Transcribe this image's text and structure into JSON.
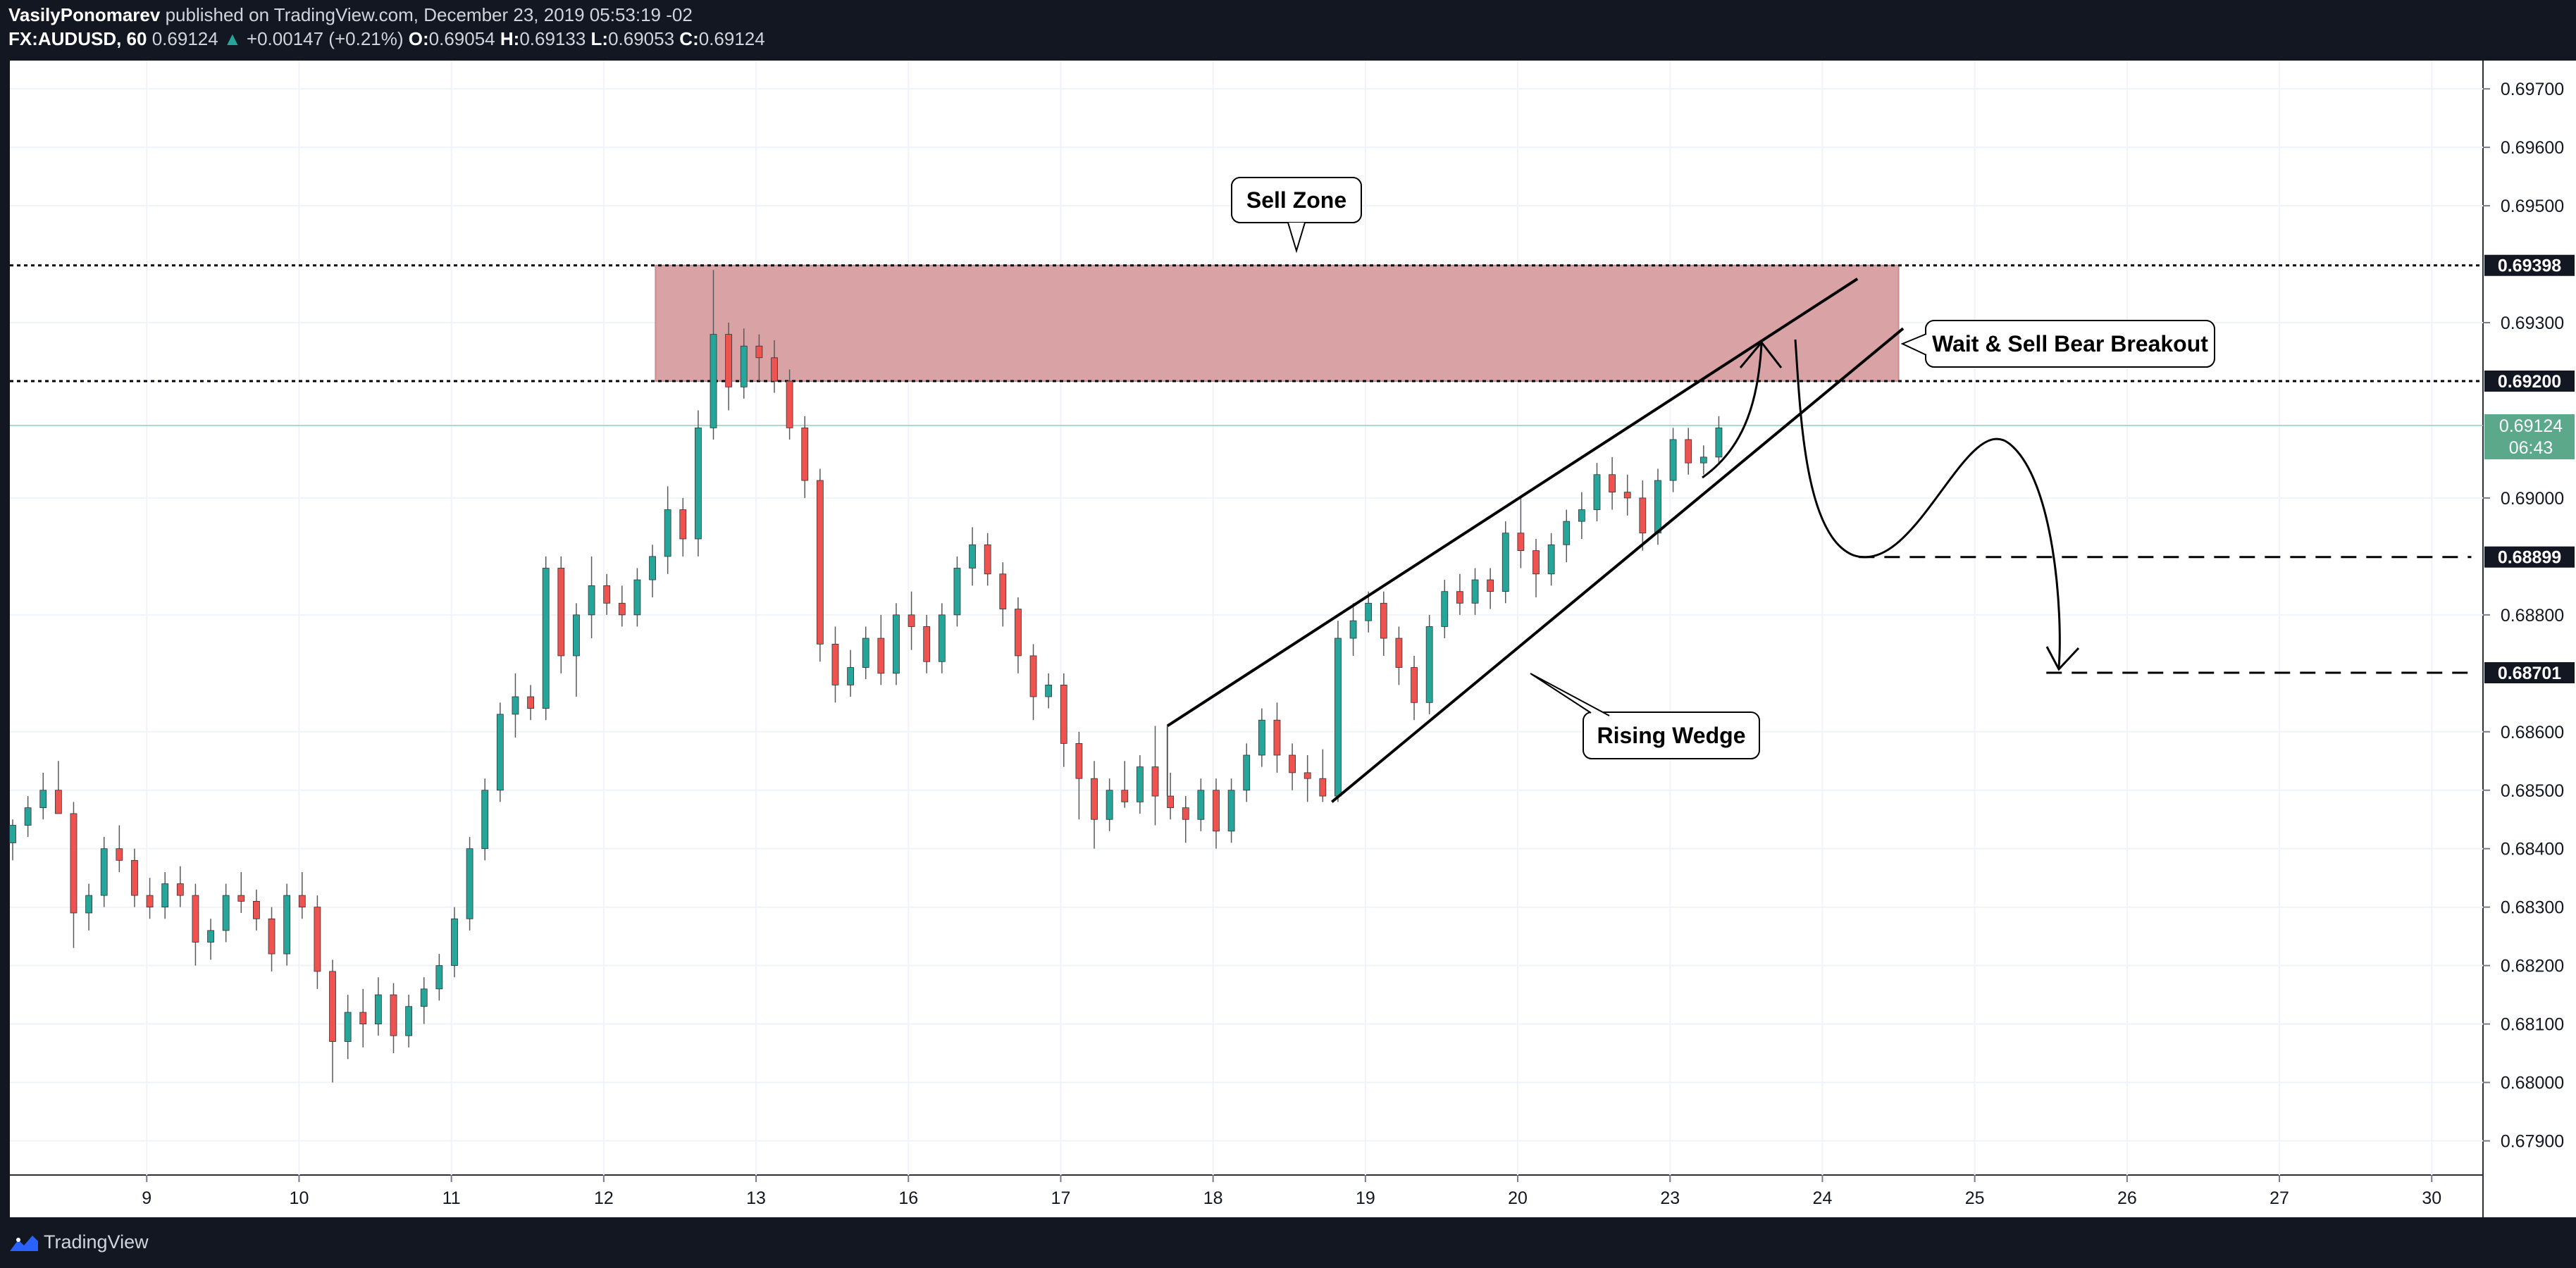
{
  "header": {
    "author": "VasilyPonomarev",
    "published_text": "published on TradingView.com, December 23, 2019 05:53:19 -02",
    "symbol": "FX:AUDUSD, 60",
    "last": "0.69124",
    "change": "+0.00147 (+0.21%)",
    "o_label": "O:",
    "o_value": "0.69054",
    "h_label": "H:",
    "h_value": "0.69133",
    "l_label": "L:",
    "l_value": "0.69053",
    "c_label": "C:",
    "c_value": "0.69124"
  },
  "footer": {
    "brand": "TradingView"
  },
  "colors": {
    "bull": "#26a69a",
    "bear": "#ef5350",
    "zone_fill": "#d9a3a6",
    "zone_edge": "#c98e92",
    "label_bg": "#ffffff",
    "last_bg": "#5ba88a"
  },
  "chart_data": {
    "type": "candlestick",
    "symbol": "AUDUSD",
    "timeframe": "60",
    "ylim": [
      0.6785,
      0.6975
    ],
    "x_range": [
      0,
      162
    ],
    "y_ticks": [
      "0.69700",
      "0.69600",
      "0.69500",
      "0.69300",
      "0.69000",
      "0.68800",
      "0.68600",
      "0.68500",
      "0.68400",
      "0.68300",
      "0.68200",
      "0.68100",
      "0.68000",
      "0.67900"
    ],
    "y_tick_values": [
      0.697,
      0.696,
      0.695,
      0.693,
      0.69,
      0.688,
      0.686,
      0.685,
      0.684,
      0.683,
      0.682,
      0.681,
      0.68,
      0.679
    ],
    "x_ticks": [
      {
        "label": "9",
        "x": 8.8
      },
      {
        "label": "10",
        "x": 18.8
      },
      {
        "label": "11",
        "x": 28.8
      },
      {
        "label": "12",
        "x": 38.8
      },
      {
        "label": "13",
        "x": 48.8
      },
      {
        "label": "16",
        "x": 58.8
      },
      {
        "label": "17",
        "x": 68.8
      },
      {
        "label": "18",
        "x": 78.8
      },
      {
        "label": "19",
        "x": 88.8
      },
      {
        "label": "20",
        "x": 98.8
      },
      {
        "label": "23",
        "x": 108.8
      },
      {
        "label": "24",
        "x": 118.8
      },
      {
        "label": "25",
        "x": 128.8
      },
      {
        "label": "26",
        "x": 138.8
      },
      {
        "label": "27",
        "x": 148.8
      },
      {
        "label": "30",
        "x": 158.8
      }
    ],
    "price_labels": [
      {
        "value": 0.69398,
        "text": "0.69398"
      },
      {
        "value": 0.692,
        "text": "0.69200"
      },
      {
        "value": 0.68899,
        "text": "0.68899"
      },
      {
        "value": 0.68701,
        "text": "0.68701"
      }
    ],
    "last_price": {
      "value": 0.69124,
      "text": "0.69124",
      "countdown": "06:43"
    },
    "sell_zone": {
      "label": "Sell Zone",
      "x_start": 42.2,
      "x_end": 123.8,
      "y_low": 0.692,
      "y_high": 0.69398
    },
    "wedge": {
      "label": "Rising Wedge",
      "upper": [
        [
          75.8,
          0.6861
        ],
        [
          121.1,
          0.69375
        ]
      ],
      "lower": [
        [
          86.6,
          0.6848
        ],
        [
          124.1,
          0.6929
        ]
      ]
    },
    "annotations": [
      {
        "text": "Wait & Sell Bear Breakout",
        "x": 135,
        "y": 0.6927
      },
      {
        "text": "Rising Wedge",
        "x": 108.8,
        "y": 0.6857
      },
      {
        "text": "Sell Zone",
        "x": 84.5,
        "y": 0.6951
      }
    ],
    "targets": [
      {
        "value": 0.68899,
        "x_start": 121.2,
        "x_end": 161.4
      },
      {
        "value": 0.68701,
        "x_start": 133.5,
        "x_end": 161.4
      }
    ],
    "candles": [
      [
        0,
        0.6841,
        0.6845,
        0.6838,
        0.6844
      ],
      [
        1,
        0.6844,
        0.6849,
        0.6842,
        0.6847
      ],
      [
        2,
        0.6847,
        0.6853,
        0.6845,
        0.685
      ],
      [
        3,
        0.685,
        0.6855,
        0.6847,
        0.6846
      ],
      [
        4,
        0.6846,
        0.6848,
        0.6823,
        0.6829
      ],
      [
        5,
        0.6829,
        0.6834,
        0.6826,
        0.6832
      ],
      [
        6,
        0.6832,
        0.6842,
        0.683,
        0.684
      ],
      [
        7,
        0.684,
        0.6844,
        0.6836,
        0.6838
      ],
      [
        8,
        0.6838,
        0.684,
        0.683,
        0.6832
      ],
      [
        9,
        0.6832,
        0.6835,
        0.6828,
        0.683
      ],
      [
        10,
        0.683,
        0.6836,
        0.6828,
        0.6834
      ],
      [
        11,
        0.6834,
        0.6837,
        0.683,
        0.6832
      ],
      [
        12,
        0.6832,
        0.6834,
        0.682,
        0.6824
      ],
      [
        13,
        0.6824,
        0.6828,
        0.6821,
        0.6826
      ],
      [
        14,
        0.6826,
        0.6834,
        0.6824,
        0.6832
      ],
      [
        15,
        0.6832,
        0.6836,
        0.6829,
        0.6831
      ],
      [
        16,
        0.6831,
        0.6833,
        0.6826,
        0.6828
      ],
      [
        17,
        0.6828,
        0.683,
        0.6819,
        0.6822
      ],
      [
        18,
        0.6822,
        0.6834,
        0.682,
        0.6832
      ],
      [
        19,
        0.6832,
        0.6836,
        0.6828,
        0.683
      ],
      [
        20,
        0.683,
        0.6832,
        0.6816,
        0.6819
      ],
      [
        21,
        0.6819,
        0.6821,
        0.68,
        0.6807
      ],
      [
        22,
        0.6807,
        0.6815,
        0.6804,
        0.6812
      ],
      [
        23,
        0.6812,
        0.6816,
        0.6806,
        0.681
      ],
      [
        24,
        0.681,
        0.6818,
        0.6808,
        0.6815
      ],
      [
        25,
        0.6815,
        0.6817,
        0.6805,
        0.6808
      ],
      [
        26,
        0.6808,
        0.6815,
        0.6806,
        0.6813
      ],
      [
        27,
        0.6813,
        0.6818,
        0.681,
        0.6816
      ],
      [
        28,
        0.6816,
        0.6822,
        0.6814,
        0.682
      ],
      [
        29,
        0.682,
        0.683,
        0.6818,
        0.6828
      ],
      [
        30,
        0.6828,
        0.6842,
        0.6826,
        0.684
      ],
      [
        31,
        0.684,
        0.6852,
        0.6838,
        0.685
      ],
      [
        32,
        0.685,
        0.6865,
        0.6848,
        0.6863
      ],
      [
        33,
        0.6863,
        0.687,
        0.6859,
        0.6866
      ],
      [
        34,
        0.6866,
        0.6868,
        0.6862,
        0.6864
      ],
      [
        35,
        0.6864,
        0.689,
        0.6862,
        0.6888
      ],
      [
        36,
        0.6888,
        0.689,
        0.687,
        0.6873
      ],
      [
        37,
        0.6873,
        0.6882,
        0.6866,
        0.688
      ],
      [
        38,
        0.688,
        0.689,
        0.6876,
        0.6885
      ],
      [
        39,
        0.6885,
        0.6887,
        0.688,
        0.6882
      ],
      [
        40,
        0.6882,
        0.6885,
        0.6878,
        0.688
      ],
      [
        41,
        0.688,
        0.6888,
        0.6878,
        0.6886
      ],
      [
        42,
        0.6886,
        0.6892,
        0.6883,
        0.689
      ],
      [
        43,
        0.689,
        0.6902,
        0.6887,
        0.6898
      ],
      [
        44,
        0.6898,
        0.69,
        0.689,
        0.6893
      ],
      [
        45,
        0.6893,
        0.6915,
        0.689,
        0.6912
      ],
      [
        46,
        0.6912,
        0.6939,
        0.691,
        0.6928
      ],
      [
        47,
        0.6928,
        0.693,
        0.6915,
        0.6919
      ],
      [
        48,
        0.6919,
        0.6929,
        0.6917,
        0.6926
      ],
      [
        49,
        0.6926,
        0.6928,
        0.692,
        0.6924
      ],
      [
        50,
        0.6924,
        0.6927,
        0.6918,
        0.692
      ],
      [
        51,
        0.692,
        0.6922,
        0.691,
        0.6912
      ],
      [
        52,
        0.6912,
        0.6914,
        0.69,
        0.6903
      ],
      [
        53,
        0.6903,
        0.6905,
        0.6872,
        0.6875
      ],
      [
        54,
        0.6875,
        0.6878,
        0.6865,
        0.6868
      ],
      [
        55,
        0.6868,
        0.6874,
        0.6866,
        0.6871
      ],
      [
        56,
        0.6871,
        0.6878,
        0.6869,
        0.6876
      ],
      [
        57,
        0.6876,
        0.688,
        0.6868,
        0.687
      ],
      [
        58,
        0.687,
        0.6882,
        0.6868,
        0.688
      ],
      [
        59,
        0.688,
        0.6884,
        0.6874,
        0.6878
      ],
      [
        60,
        0.6878,
        0.688,
        0.687,
        0.6872
      ],
      [
        61,
        0.6872,
        0.6882,
        0.687,
        0.688
      ],
      [
        62,
        0.688,
        0.689,
        0.6878,
        0.6888
      ],
      [
        63,
        0.6888,
        0.6895,
        0.6885,
        0.6892
      ],
      [
        64,
        0.6892,
        0.6894,
        0.6885,
        0.6887
      ],
      [
        65,
        0.6887,
        0.6889,
        0.6878,
        0.6881
      ],
      [
        66,
        0.6881,
        0.6883,
        0.687,
        0.6873
      ],
      [
        67,
        0.6873,
        0.6875,
        0.6862,
        0.6866
      ],
      [
        68,
        0.6866,
        0.687,
        0.6864,
        0.6868
      ],
      [
        69,
        0.6868,
        0.687,
        0.6854,
        0.6858
      ],
      [
        70,
        0.6858,
        0.686,
        0.6845,
        0.6852
      ],
      [
        71,
        0.6852,
        0.6855,
        0.684,
        0.6845
      ],
      [
        72,
        0.6845,
        0.6852,
        0.6843,
        0.685
      ],
      [
        73,
        0.685,
        0.6855,
        0.6847,
        0.6848
      ],
      [
        74,
        0.6848,
        0.6856,
        0.6846,
        0.6854
      ],
      [
        75,
        0.6854,
        0.6861,
        0.6844,
        0.6849
      ],
      [
        76,
        0.6849,
        0.6853,
        0.6845,
        0.6847
      ],
      [
        77,
        0.6847,
        0.6849,
        0.6841,
        0.6845
      ],
      [
        78,
        0.6845,
        0.6852,
        0.6843,
        0.685
      ],
      [
        79,
        0.685,
        0.6852,
        0.684,
        0.6843
      ],
      [
        80,
        0.6843,
        0.6852,
        0.6841,
        0.685
      ],
      [
        81,
        0.685,
        0.6858,
        0.6848,
        0.6856
      ],
      [
        82,
        0.6856,
        0.6864,
        0.6854,
        0.6862
      ],
      [
        83,
        0.6862,
        0.6865,
        0.6853,
        0.6856
      ],
      [
        84,
        0.6856,
        0.6858,
        0.685,
        0.6853
      ],
      [
        85,
        0.6853,
        0.6856,
        0.6848,
        0.6852
      ],
      [
        86,
        0.6852,
        0.6857,
        0.6848,
        0.6849
      ],
      [
        87,
        0.6849,
        0.6879,
        0.6848,
        0.6876
      ],
      [
        88,
        0.6876,
        0.6882,
        0.6873,
        0.6879
      ],
      [
        89,
        0.6879,
        0.6884,
        0.6877,
        0.6882
      ],
      [
        90,
        0.6882,
        0.6884,
        0.6873,
        0.6876
      ],
      [
        91,
        0.6876,
        0.6878,
        0.6868,
        0.6871
      ],
      [
        92,
        0.6871,
        0.6873,
        0.6862,
        0.6865
      ],
      [
        93,
        0.6865,
        0.688,
        0.6863,
        0.6878
      ],
      [
        94,
        0.6878,
        0.6886,
        0.6876,
        0.6884
      ],
      [
        95,
        0.6884,
        0.6887,
        0.688,
        0.6882
      ],
      [
        96,
        0.6882,
        0.6888,
        0.688,
        0.6886
      ],
      [
        97,
        0.6886,
        0.6888,
        0.6881,
        0.6884
      ],
      [
        98,
        0.6884,
        0.6896,
        0.6882,
        0.6894
      ],
      [
        99,
        0.6894,
        0.69,
        0.6888,
        0.6891
      ],
      [
        100,
        0.6891,
        0.6893,
        0.6883,
        0.6887
      ],
      [
        101,
        0.6887,
        0.6894,
        0.6885,
        0.6892
      ],
      [
        102,
        0.6892,
        0.6898,
        0.6889,
        0.6896
      ],
      [
        103,
        0.6896,
        0.6901,
        0.6893,
        0.6898
      ],
      [
        104,
        0.6898,
        0.6906,
        0.6896,
        0.6904
      ],
      [
        105,
        0.6904,
        0.6907,
        0.6898,
        0.6901
      ],
      [
        106,
        0.6901,
        0.6904,
        0.6897,
        0.69
      ],
      [
        107,
        0.69,
        0.6903,
        0.6891,
        0.6894
      ],
      [
        108,
        0.6894,
        0.6905,
        0.6892,
        0.6903
      ],
      [
        109,
        0.6903,
        0.6912,
        0.6901,
        0.691
      ],
      [
        110,
        0.691,
        0.6912,
        0.6904,
        0.6906
      ],
      [
        111,
        0.6906,
        0.6909,
        0.6904,
        0.6907
      ],
      [
        112,
        0.6907,
        0.6914,
        0.6906,
        0.6912
      ]
    ]
  }
}
